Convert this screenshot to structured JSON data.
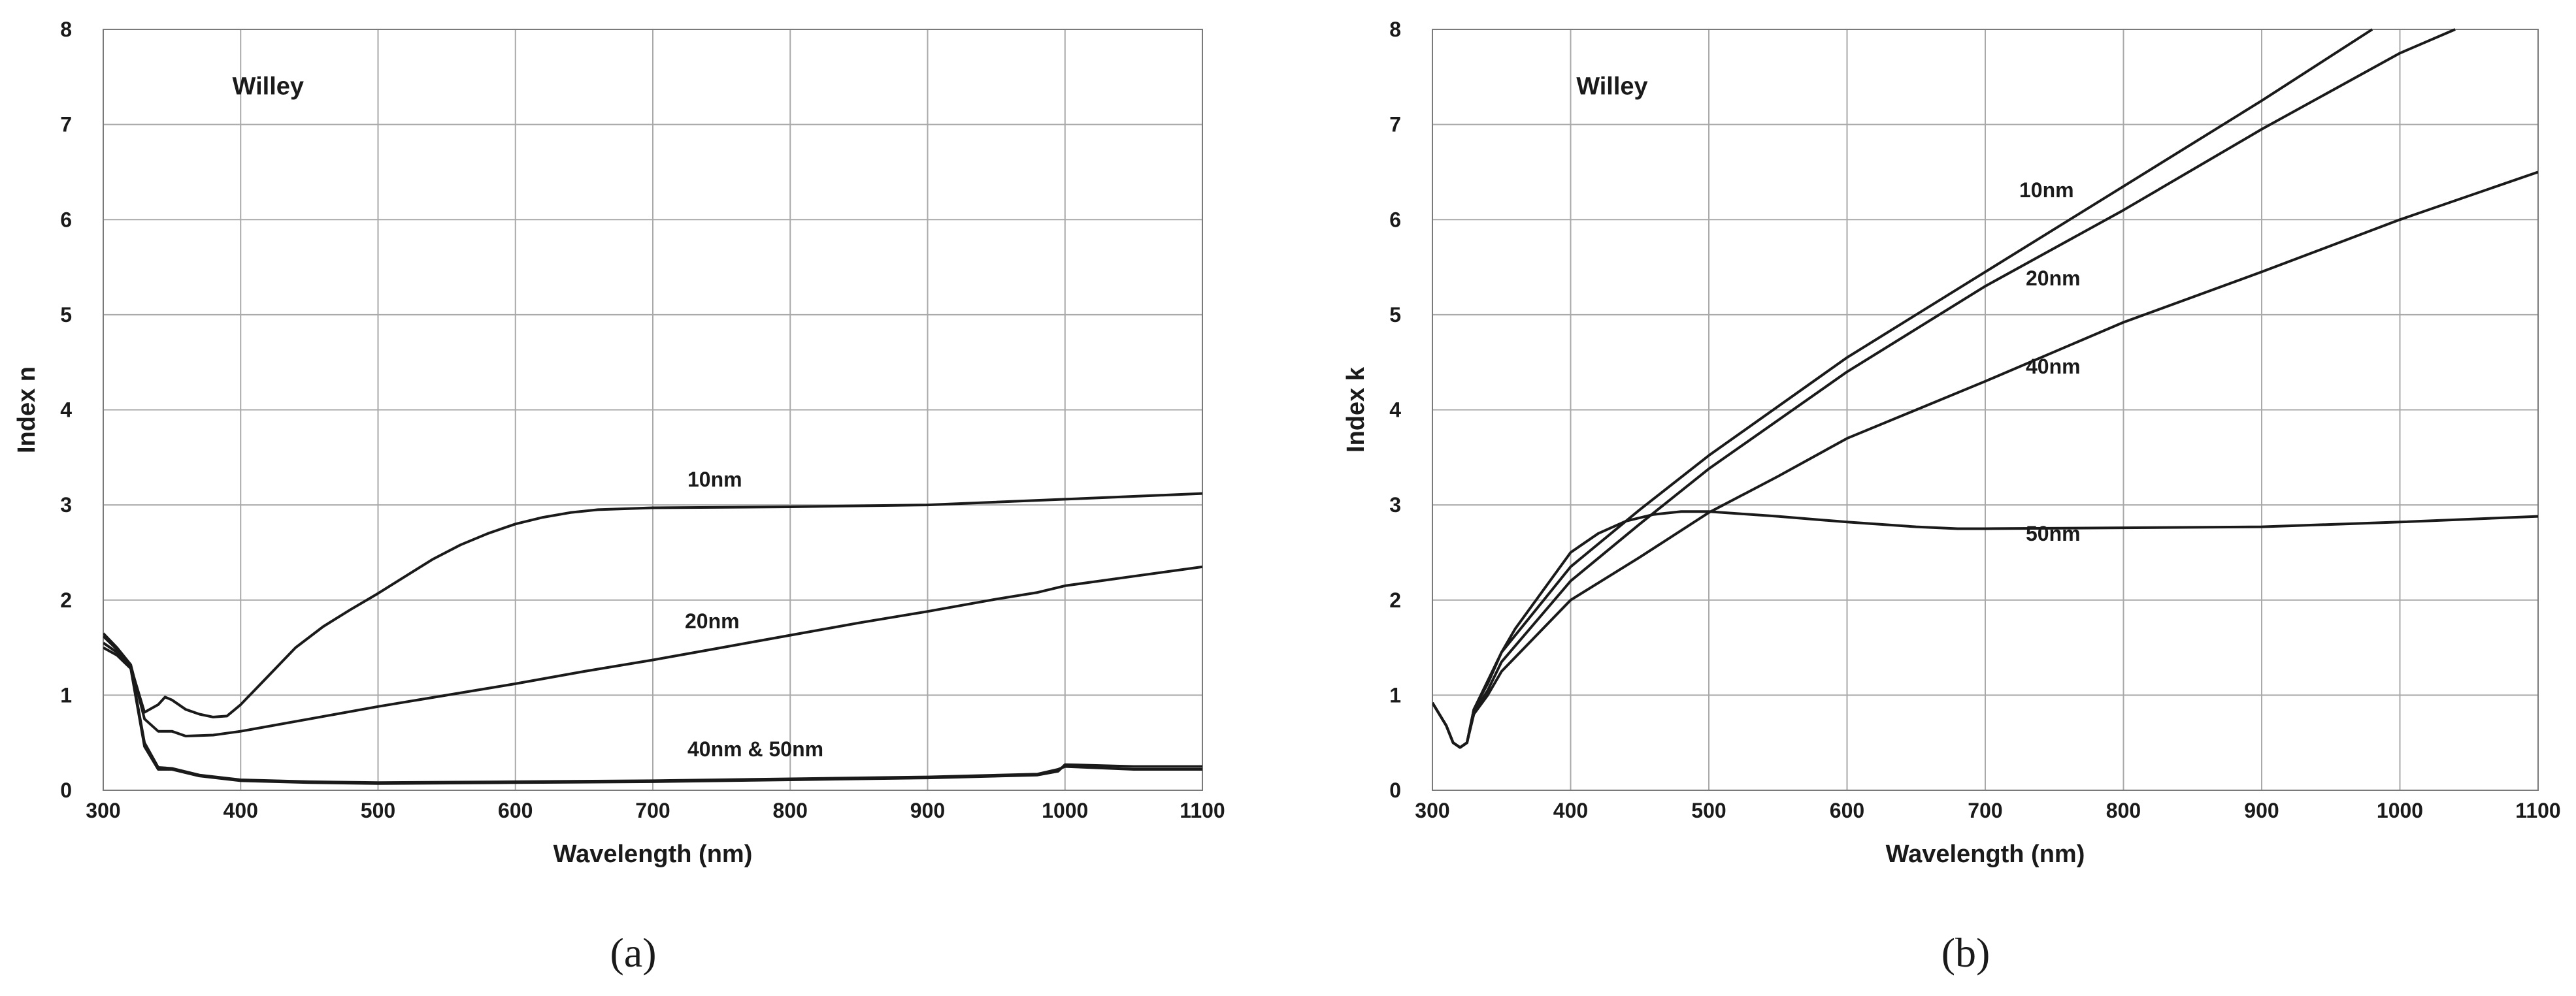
{
  "chart_data": [
    {
      "type": "line",
      "panel": "a",
      "title": "Willey",
      "caption": "(a)",
      "xlabel": "Wavelength (nm)",
      "ylabel": "Index n",
      "xlim": [
        300,
        1100
      ],
      "ylim": [
        0,
        8
      ],
      "xticks": [
        300,
        400,
        500,
        600,
        700,
        800,
        900,
        1000,
        1100
      ],
      "yticks": [
        0,
        1,
        2,
        3,
        4,
        5,
        6,
        7,
        8
      ],
      "grid": true,
      "series": [
        {
          "name": "10nm",
          "x": [
            300,
            310,
            320,
            330,
            340,
            345,
            350,
            360,
            370,
            380,
            390,
            400,
            420,
            440,
            460,
            480,
            500,
            520,
            540,
            560,
            580,
            600,
            620,
            640,
            660,
            700,
            800,
            900,
            1000,
            1100
          ],
          "y": [
            1.62,
            1.48,
            1.3,
            0.82,
            0.9,
            0.98,
            0.95,
            0.85,
            0.8,
            0.77,
            0.78,
            0.9,
            1.2,
            1.5,
            1.72,
            1.9,
            2.07,
            2.25,
            2.43,
            2.58,
            2.7,
            2.8,
            2.87,
            2.92,
            2.95,
            2.97,
            2.98,
            3.0,
            3.06,
            3.12
          ]
        },
        {
          "name": "20nm",
          "x": [
            300,
            310,
            320,
            330,
            340,
            350,
            360,
            380,
            400,
            450,
            500,
            550,
            600,
            650,
            700,
            750,
            800,
            850,
            900,
            950,
            980,
            1000,
            1050,
            1100
          ],
          "y": [
            1.65,
            1.5,
            1.32,
            0.75,
            0.62,
            0.62,
            0.57,
            0.58,
            0.62,
            0.75,
            0.88,
            1.0,
            1.12,
            1.25,
            1.37,
            1.5,
            1.63,
            1.76,
            1.88,
            2.01,
            2.08,
            2.15,
            2.25,
            2.35
          ]
        },
        {
          "name": "40nm & 50nm",
          "label_only": true,
          "x": [
            300,
            310,
            320,
            330,
            340,
            350,
            370,
            400,
            450,
            500,
            600,
            700,
            800,
            900,
            980,
            995,
            1000,
            1050,
            1100
          ],
          "y": [
            1.55,
            1.45,
            1.3,
            0.5,
            0.24,
            0.23,
            0.16,
            0.11,
            0.09,
            0.08,
            0.09,
            0.1,
            0.12,
            0.14,
            0.17,
            0.22,
            0.25,
            0.22,
            0.22
          ]
        },
        {
          "x": [
            300,
            310,
            320,
            330,
            340,
            350,
            370,
            400,
            450,
            500,
            600,
            700,
            800,
            900,
            980,
            995,
            1000,
            1050,
            1100
          ],
          "y": [
            1.5,
            1.42,
            1.28,
            0.46,
            0.22,
            0.22,
            0.15,
            0.1,
            0.08,
            0.07,
            0.08,
            0.09,
            0.11,
            0.13,
            0.16,
            0.2,
            0.27,
            0.25,
            0.25
          ]
        }
      ]
    },
    {
      "type": "line",
      "panel": "b",
      "title": "Willey",
      "caption": "(b)",
      "xlabel": "Wavelength (nm)",
      "ylabel": "Index k",
      "xlim": [
        300,
        1100
      ],
      "ylim": [
        0,
        8
      ],
      "xticks": [
        300,
        400,
        500,
        600,
        700,
        800,
        900,
        1000,
        1100
      ],
      "yticks": [
        0,
        1,
        2,
        3,
        4,
        5,
        6,
        7,
        8
      ],
      "grid": true,
      "series": [
        {
          "name": "10nm",
          "x": [
            300,
            310,
            315,
            320,
            325,
            330,
            340,
            350,
            360,
            380,
            400,
            420,
            440,
            460,
            480,
            500,
            550,
            600,
            650,
            680,
            700,
            800,
            900,
            1000,
            1100
          ],
          "y": [
            0.92,
            0.68,
            0.5,
            0.45,
            0.5,
            0.85,
            1.15,
            1.45,
            1.7,
            2.1,
            2.5,
            2.7,
            2.83,
            2.9,
            2.93,
            2.93,
            2.88,
            2.82,
            2.77,
            2.75,
            2.75,
            2.76,
            2.77,
            2.82,
            2.88
          ]
        },
        {
          "name": "20nm",
          "x": [
            300,
            310,
            315,
            320,
            325,
            330,
            340,
            350,
            400,
            450,
            500,
            550,
            600,
            700,
            800,
            900,
            1000,
            1100
          ],
          "y": [
            0.92,
            0.68,
            0.5,
            0.45,
            0.5,
            0.8,
            1.0,
            1.25,
            2.0,
            2.45,
            2.92,
            3.3,
            3.7,
            4.3,
            4.92,
            5.45,
            6.0,
            6.5
          ]
        },
        {
          "name": "40nm",
          "x": [
            300,
            310,
            315,
            320,
            325,
            330,
            340,
            350,
            400,
            450,
            500,
            600,
            700,
            800,
            900,
            1000,
            1040
          ],
          "y": [
            0.92,
            0.68,
            0.5,
            0.45,
            0.5,
            0.82,
            1.05,
            1.35,
            2.2,
            2.8,
            3.38,
            4.4,
            5.3,
            6.1,
            6.95,
            7.75,
            8.0
          ]
        },
        {
          "name": "50nm",
          "x": [
            300,
            310,
            315,
            320,
            325,
            330,
            340,
            350,
            400,
            450,
            500,
            600,
            700,
            800,
            900,
            980
          ],
          "y": [
            0.92,
            0.68,
            0.5,
            0.45,
            0.5,
            0.85,
            1.12,
            1.45,
            2.35,
            2.95,
            3.52,
            4.55,
            5.45,
            6.35,
            7.25,
            8.0
          ]
        }
      ]
    }
  ]
}
